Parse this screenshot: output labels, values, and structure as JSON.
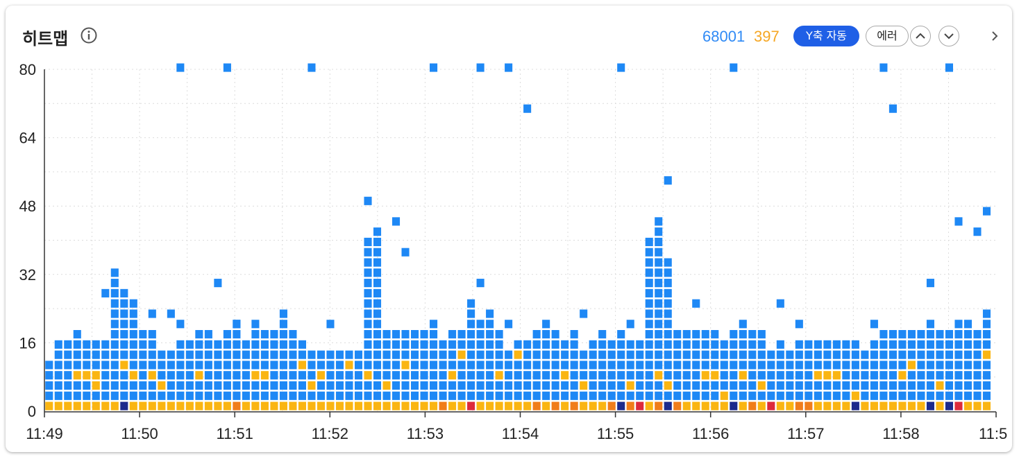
{
  "header": {
    "title": "히트맵",
    "info_icon": "info-icon",
    "total_count": "68001",
    "error_count": "397",
    "y_auto_button": "Y축 자동",
    "error_button": "에러",
    "up_icon": "chevron-up-icon",
    "down_icon": "chevron-down-icon",
    "next_icon": "chevron-right-icon"
  },
  "colors": {
    "normal": "#1e88f5",
    "warning": "#fab512",
    "warning_orange": "#f07d1a",
    "error_red": "#dd2a3b",
    "dark_navy": "#1c2a8c",
    "total_text": "#2f8af5",
    "error_text": "#f5a623"
  },
  "chart_data": {
    "type": "heatmap",
    "title": "히트맵",
    "xlabel": "",
    "ylabel": "",
    "x_ticks": [
      "11:49",
      "11:50",
      "11:51",
      "11:52",
      "11:53",
      "11:54",
      "11:55",
      "11:56",
      "11:57",
      "11:58",
      "11:5"
    ],
    "y_ticks": [
      0,
      16,
      32,
      48,
      64,
      80
    ],
    "ylim": [
      0,
      80
    ],
    "xlim_minutes": [
      0,
      10
    ],
    "columns": 101,
    "bucket_size": 2.4,
    "grid": true,
    "legend": "none",
    "column_heights": [
      13,
      16,
      16,
      18,
      16,
      16,
      16,
      34,
      29,
      26,
      18,
      18,
      14,
      14,
      16,
      17,
      20,
      19,
      16,
      20,
      22,
      16,
      18,
      20,
      20,
      23,
      20,
      17,
      15,
      15,
      15,
      15,
      15,
      15,
      40,
      43,
      20,
      18,
      20,
      18,
      19,
      19,
      16,
      19,
      20,
      26,
      22,
      24,
      19,
      15,
      17,
      16,
      19,
      18,
      18,
      16,
      18,
      15,
      16,
      18,
      17,
      18,
      17,
      17,
      40,
      45,
      36,
      18,
      18,
      18,
      18,
      18,
      17,
      19,
      18,
      19,
      18,
      15,
      17,
      15,
      17,
      16,
      17,
      16,
      16,
      17,
      17,
      15,
      17,
      19,
      20,
      19,
      20,
      20,
      22,
      19,
      20,
      22,
      21,
      20,
      25
    ],
    "top_boxes": [
      {
        "col": 6,
        "y": 26
      },
      {
        "col": 11,
        "y": 21
      },
      {
        "col": 13,
        "y": 22
      },
      {
        "col": 14,
        "y": 20
      },
      {
        "col": 18,
        "y": 29
      },
      {
        "col": 20,
        "y": 18
      },
      {
        "col": 22,
        "y": 20
      },
      {
        "col": 30,
        "y": 20
      },
      {
        "col": 34,
        "y": 47
      },
      {
        "col": 37,
        "y": 44
      },
      {
        "col": 38,
        "y": 37
      },
      {
        "col": 41,
        "y": 20
      },
      {
        "col": 46,
        "y": 28
      },
      {
        "col": 49,
        "y": 20
      },
      {
        "col": 53,
        "y": 20
      },
      {
        "col": 57,
        "y": 22
      },
      {
        "col": 62,
        "y": 20
      },
      {
        "col": 66,
        "y": 53
      },
      {
        "col": 69,
        "y": 25
      },
      {
        "col": 74,
        "y": 18
      },
      {
        "col": 78,
        "y": 23
      },
      {
        "col": 80,
        "y": 20
      },
      {
        "col": 88,
        "y": 20
      },
      {
        "col": 94,
        "y": 28
      },
      {
        "col": 97,
        "y": 43
      },
      {
        "col": 99,
        "y": 40
      },
      {
        "col": 100,
        "y": 45
      }
    ],
    "outliers": [
      {
        "col": 14,
        "y": 79
      },
      {
        "col": 19,
        "y": 79
      },
      {
        "col": 28,
        "y": 79
      },
      {
        "col": 41,
        "y": 79
      },
      {
        "col": 46,
        "y": 79
      },
      {
        "col": 49,
        "y": 79
      },
      {
        "col": 51,
        "y": 69
      },
      {
        "col": 61,
        "y": 79
      },
      {
        "col": 73,
        "y": 79
      },
      {
        "col": 89,
        "y": 79
      },
      {
        "col": 90,
        "y": 70
      },
      {
        "col": 96,
        "y": 79
      }
    ],
    "bottom_row": {
      "orange_cols": [
        20,
        42,
        52,
        54,
        56,
        60,
        62,
        65,
        67,
        75,
        80,
        81
      ],
      "red_cols": [
        45,
        63,
        77,
        97
      ],
      "navy_cols": [
        8,
        61,
        66,
        73,
        86,
        94,
        96
      ]
    },
    "yellow_cells": [
      {
        "col": 3,
        "y": 7
      },
      {
        "col": 4,
        "y": 7
      },
      {
        "col": 5,
        "y": 7
      },
      {
        "col": 5,
        "y": 4
      },
      {
        "col": 8,
        "y": 10
      },
      {
        "col": 9,
        "y": 7
      },
      {
        "col": 11,
        "y": 7
      },
      {
        "col": 12,
        "y": 5
      },
      {
        "col": 16,
        "y": 7
      },
      {
        "col": 21,
        "y": 31
      },
      {
        "col": 22,
        "y": 7
      },
      {
        "col": 23,
        "y": 7
      },
      {
        "col": 27,
        "y": 10
      },
      {
        "col": 28,
        "y": 5
      },
      {
        "col": 29,
        "y": 7
      },
      {
        "col": 32,
        "y": 10
      },
      {
        "col": 34,
        "y": 7
      },
      {
        "col": 36,
        "y": 5
      },
      {
        "col": 38,
        "y": 10
      },
      {
        "col": 42,
        "y": 31
      },
      {
        "col": 43,
        "y": 7
      },
      {
        "col": 44,
        "y": 12
      },
      {
        "col": 48,
        "y": 7
      },
      {
        "col": 50,
        "y": 12
      },
      {
        "col": 55,
        "y": 7
      },
      {
        "col": 57,
        "y": 5
      },
      {
        "col": 62,
        "y": 5
      },
      {
        "col": 65,
        "y": 7
      },
      {
        "col": 66,
        "y": 5
      },
      {
        "col": 70,
        "y": 7
      },
      {
        "col": 71,
        "y": 7
      },
      {
        "col": 72,
        "y": 3
      },
      {
        "col": 74,
        "y": 7
      },
      {
        "col": 76,
        "y": 5
      },
      {
        "col": 82,
        "y": 7
      },
      {
        "col": 83,
        "y": 7
      },
      {
        "col": 84,
        "y": 7
      },
      {
        "col": 86,
        "y": 3
      },
      {
        "col": 91,
        "y": 7
      },
      {
        "col": 92,
        "y": 10
      },
      {
        "col": 95,
        "y": 5
      },
      {
        "col": 100,
        "y": 12
      }
    ]
  }
}
